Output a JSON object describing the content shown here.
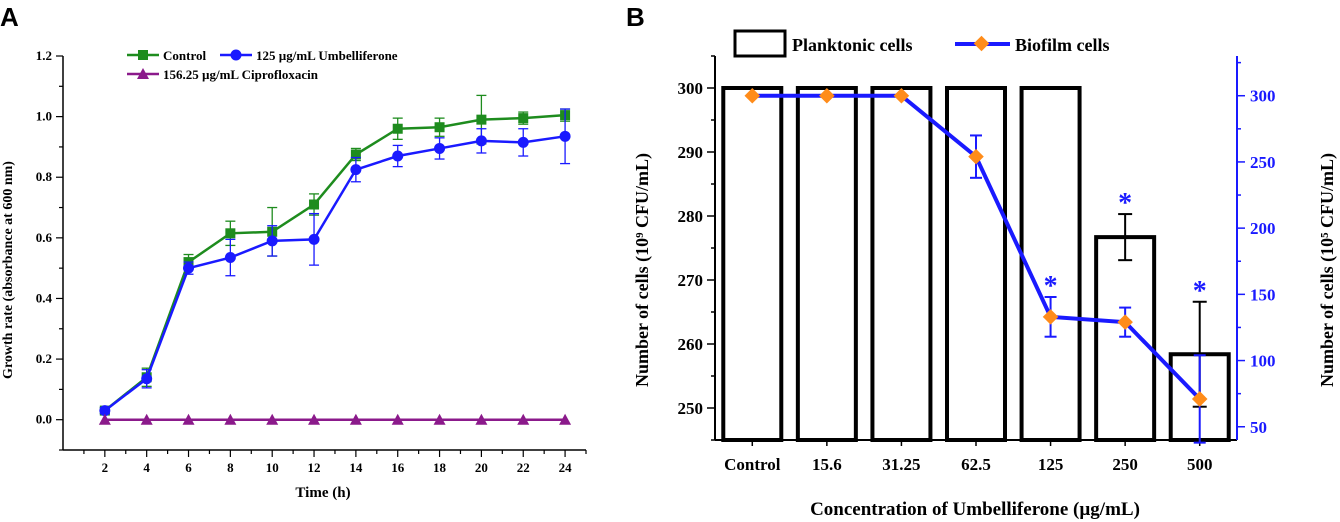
{
  "chart_data": [
    {
      "panel_label": "A",
      "type": "line",
      "xlabel": "Time (h)",
      "ylabel": "Growth rate (absorbance at 600 nm)",
      "x": [
        2,
        4,
        6,
        8,
        10,
        12,
        14,
        16,
        18,
        20,
        22,
        24
      ],
      "xlim": [
        0,
        25
      ],
      "ylim": [
        -0.1,
        1.2
      ],
      "xticks": [
        "2",
        "4",
        "6",
        "8",
        "10",
        "12",
        "14",
        "16",
        "18",
        "20",
        "22",
        "24"
      ],
      "yticks": [
        "0.0",
        "0.2",
        "0.4",
        "0.6",
        "0.8",
        "1.0",
        "1.2"
      ],
      "series": [
        {
          "name": "Control",
          "color": "#1e8c1e",
          "marker": "square",
          "values": [
            0.03,
            0.14,
            0.52,
            0.615,
            0.62,
            0.71,
            0.875,
            0.96,
            0.965,
            0.99,
            0.995,
            1.005
          ],
          "errors": [
            0.01,
            0.03,
            0.025,
            0.04,
            0.08,
            0.035,
            0.02,
            0.035,
            0.03,
            0.08,
            0.02,
            0.02
          ]
        },
        {
          "name": "125 µg/mL Umbelliferone",
          "color": "#1a1aff",
          "marker": "circle",
          "values": [
            0.03,
            0.135,
            0.5,
            0.535,
            0.59,
            0.595,
            0.825,
            0.87,
            0.895,
            0.92,
            0.915,
            0.935
          ],
          "errors": [
            0.01,
            0.03,
            0.02,
            0.06,
            0.05,
            0.085,
            0.04,
            0.035,
            0.035,
            0.04,
            0.045,
            0.09
          ]
        },
        {
          "name": "156.25 µg/mL Ciprofloxacin",
          "color": "#8b1a8b",
          "marker": "triangle",
          "values": [
            0,
            0,
            0,
            0,
            0,
            0,
            0,
            0,
            0,
            0,
            0,
            0
          ],
          "errors": [
            0,
            0,
            0,
            0,
            0,
            0,
            0,
            0,
            0,
            0,
            0,
            0
          ]
        }
      ]
    },
    {
      "panel_label": "B",
      "type": "bar",
      "xlabel": "Concentration of Umbelliferone (µg/mL)",
      "ylabel_left": "Number of cells (10⁹ CFU/mL)",
      "ylabel_right": "Number of cells (10⁵ CFU/mL)",
      "categories": [
        "Control",
        "15.6",
        "31.25",
        "62.5",
        "125",
        "250",
        "500"
      ],
      "ylim_left": [
        245,
        305
      ],
      "ylim_right": [
        40,
        330
      ],
      "yticks_left": [
        "250",
        "260",
        "270",
        "280",
        "290",
        "300"
      ],
      "yticks_right": [
        "50",
        "100",
        "150",
        "200",
        "250",
        "300"
      ],
      "series": [
        {
          "name": "Planktonic cells",
          "axis": "left",
          "type": "bar",
          "values": [
            300,
            300,
            300,
            300,
            300,
            276.7,
            258.4
          ],
          "errors": [
            0,
            0,
            0,
            0,
            0,
            3.6,
            8.2
          ]
        },
        {
          "name": "Biofilm cells",
          "axis": "right",
          "type": "line",
          "line_color": "#1a1aff",
          "marker_color": "#ff8c1a",
          "values": [
            300,
            300,
            300,
            254,
            133,
            129,
            71
          ],
          "errors": [
            0,
            0,
            0,
            16,
            15,
            11,
            33
          ]
        }
      ],
      "significance_label": "*",
      "significant_categories": [
        "125",
        "250",
        "500"
      ]
    }
  ]
}
